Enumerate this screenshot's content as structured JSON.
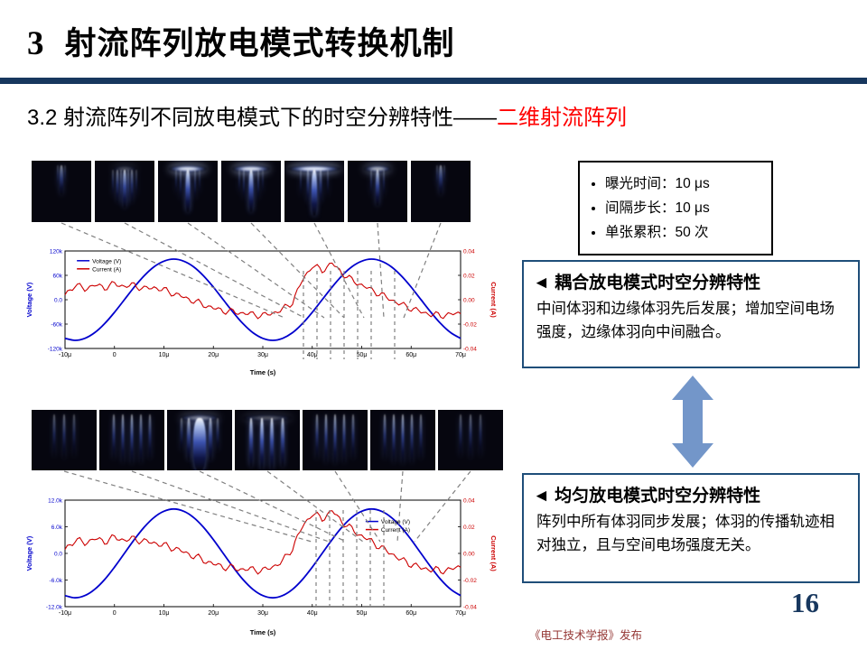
{
  "header": {
    "section_number": "3",
    "title": "射流阵列放电模式转换机制",
    "subtitle_prefix": "3.2 射流阵列不同放电模式下的时空分辨特性——",
    "subtitle_highlight": "二维射流阵列"
  },
  "params_box": {
    "items": [
      "曝光时间：10 μs",
      "间隔步长：10 μs",
      "单张累积：50 次"
    ]
  },
  "coupled_box": {
    "title": "◄ 耦合放电模式时空分辨特性",
    "body": "中间体羽和边缘体羽先后发展；增加空间电场强度，边缘体羽向中间融合。"
  },
  "uniform_box": {
    "title": "◄ 均匀放电模式时空分辨特性",
    "body": "阵列中所有体羽同步发展；体羽的传播轨迹相对独立，且与空间电场强度无关。"
  },
  "footer": {
    "text": "《电工技术学报》发布",
    "page_number": "16"
  },
  "colors": {
    "accent_navy": "#17375E",
    "box_border": "#1F4E79",
    "subtitle_red": "#FF0000",
    "arrow_blue": "#7396C9",
    "voltage_blue": "#0000CD",
    "current_red": "#CC0000",
    "footer_red": "#953735",
    "connector_gray": "#808080"
  },
  "images": {
    "top_row": [
      "plume-faint",
      "plume-fan",
      "plume-T-bright",
      "plume-T-bright",
      "plume-T-wide",
      "plume-T-medium",
      "plume-faint"
    ],
    "bottom_row": [
      "stripes-faint",
      "stripes",
      "column-big",
      "columns-bright",
      "stripes",
      "stripes",
      "stripes-faint"
    ]
  },
  "chart_data": [
    {
      "type": "line",
      "title": "",
      "x_axis": {
        "title": "Time (s)",
        "min": -10,
        "max": 70,
        "tick_values": [
          -10,
          0,
          10,
          20,
          30,
          40,
          50,
          60,
          70
        ],
        "tick_labels": [
          "-10μ",
          "0",
          "10μ",
          "20μ",
          "30μ",
          "40μ",
          "50μ",
          "60μ",
          "70μ"
        ]
      },
      "y_left": {
        "title": "Voltage (V)",
        "min": -120,
        "max": 120,
        "tick_values": [
          120,
          60,
          0,
          -60,
          -120
        ],
        "tick_labels": [
          "120k",
          "60k",
          "0.0",
          "-60k",
          "-120k"
        ]
      },
      "y_right": {
        "title": "Current (A)",
        "min": -0.04,
        "max": 0.04,
        "tick_values": [
          0.04,
          0.02,
          0,
          -0.02,
          -0.04
        ],
        "tick_labels": [
          "0.04",
          "0.02",
          "0.00",
          "-0.02",
          "-0.04"
        ]
      },
      "legend": {
        "entries": [
          "Voltage (V)",
          "Current (A)"
        ],
        "position": "top-left"
      },
      "x": [
        -10,
        -8,
        -6,
        -4,
        -2,
        0,
        2,
        4,
        6,
        8,
        10,
        12,
        14,
        16,
        18,
        20,
        22,
        24,
        26,
        28,
        30,
        32,
        34,
        36,
        38,
        40,
        42,
        44,
        46,
        48,
        50,
        52,
        54,
        56,
        58,
        60,
        62,
        64,
        66,
        68,
        70
      ],
      "series": [
        {
          "name": "Voltage (V)",
          "axis": "left",
          "color": "#0000CD",
          "values": [
            -95,
            -100,
            -95,
            -81,
            -59,
            -31,
            0,
            31,
            59,
            81,
            95,
            100,
            95,
            81,
            59,
            31,
            0,
            -31,
            -59,
            -81,
            -95,
            -100,
            -95,
            -81,
            -59,
            -31,
            0,
            31,
            59,
            81,
            95,
            100,
            95,
            81,
            59,
            31,
            0,
            -31,
            -59,
            -81,
            -95
          ]
        },
        {
          "name": "Current (A)",
          "axis": "right",
          "color": "#CC0000",
          "values": [
            0.004,
            0.012,
            0.009,
            0.012,
            0.01,
            0.013,
            0.011,
            0.012,
            0.009,
            0.01,
            0.008,
            0.005,
            0.002,
            -0.001,
            -0.004,
            -0.007,
            -0.009,
            -0.01,
            -0.011,
            -0.012,
            -0.013,
            -0.011,
            -0.008,
            -0.002,
            0.016,
            0.028,
            0.024,
            0.03,
            0.022,
            0.016,
            0.012,
            0.008,
            0.004,
            0.0,
            -0.004,
            -0.007,
            -0.01,
            -0.012,
            -0.013,
            -0.012,
            -0.011
          ]
        }
      ]
    },
    {
      "type": "line",
      "title": "",
      "x_axis": {
        "title": "Time (s)",
        "min": -10,
        "max": 70,
        "tick_values": [
          -10,
          0,
          10,
          20,
          30,
          40,
          50,
          60,
          70
        ],
        "tick_labels": [
          "-10μ",
          "0",
          "10μ",
          "20μ",
          "30μ",
          "40μ",
          "50μ",
          "60μ",
          "70μ"
        ]
      },
      "y_left": {
        "title": "Voltage (V)",
        "min": -12,
        "max": 12,
        "tick_values": [
          12,
          6,
          0,
          -6,
          -12
        ],
        "tick_labels": [
          "12.0k",
          "6.0k",
          "0.0",
          "-6.0k",
          "-12.0k"
        ]
      },
      "y_right": {
        "title": "Current (A)",
        "min": -0.04,
        "max": 0.04,
        "tick_values": [
          0.04,
          0.02,
          0,
          -0.02,
          -0.04
        ],
        "tick_labels": [
          "0.04",
          "0.02",
          "0.00",
          "-0.02",
          "-0.04"
        ]
      },
      "legend": {
        "entries": [
          "Voltage (V)",
          "Current (A)"
        ],
        "position": "right-center"
      },
      "x": [
        -10,
        -8,
        -6,
        -4,
        -2,
        0,
        2,
        4,
        6,
        8,
        10,
        12,
        14,
        16,
        18,
        20,
        22,
        24,
        26,
        28,
        30,
        32,
        34,
        36,
        38,
        40,
        42,
        44,
        46,
        48,
        50,
        52,
        54,
        56,
        58,
        60,
        62,
        64,
        66,
        68,
        70
      ],
      "series": [
        {
          "name": "Voltage (V)",
          "axis": "left",
          "color": "#0000CD",
          "values": [
            -9.5,
            -10,
            -9.5,
            -8.1,
            -5.9,
            -3.1,
            0,
            3.1,
            5.9,
            8.1,
            9.5,
            10,
            9.5,
            8.1,
            5.9,
            3.1,
            0,
            -3.1,
            -5.9,
            -8.1,
            -9.5,
            -10,
            -9.5,
            -8.1,
            -5.9,
            -3.1,
            0,
            3.1,
            5.9,
            8.1,
            9.5,
            10,
            9.5,
            8.1,
            5.9,
            3.1,
            0,
            -3.1,
            -5.9,
            -8.1,
            -9.5
          ]
        },
        {
          "name": "Current (A)",
          "axis": "right",
          "color": "#CC0000",
          "values": [
            0.003,
            0.01,
            0.008,
            0.011,
            0.009,
            0.012,
            0.01,
            0.011,
            0.009,
            0.008,
            0.006,
            0.004,
            0.001,
            -0.002,
            -0.005,
            -0.008,
            -0.01,
            -0.011,
            -0.012,
            -0.012,
            -0.013,
            -0.01,
            -0.006,
            0.004,
            0.02,
            0.03,
            0.026,
            0.032,
            0.024,
            0.018,
            0.013,
            0.009,
            0.004,
            0.0,
            -0.005,
            -0.008,
            -0.011,
            -0.012,
            -0.013,
            -0.012,
            -0.01
          ]
        }
      ]
    }
  ]
}
